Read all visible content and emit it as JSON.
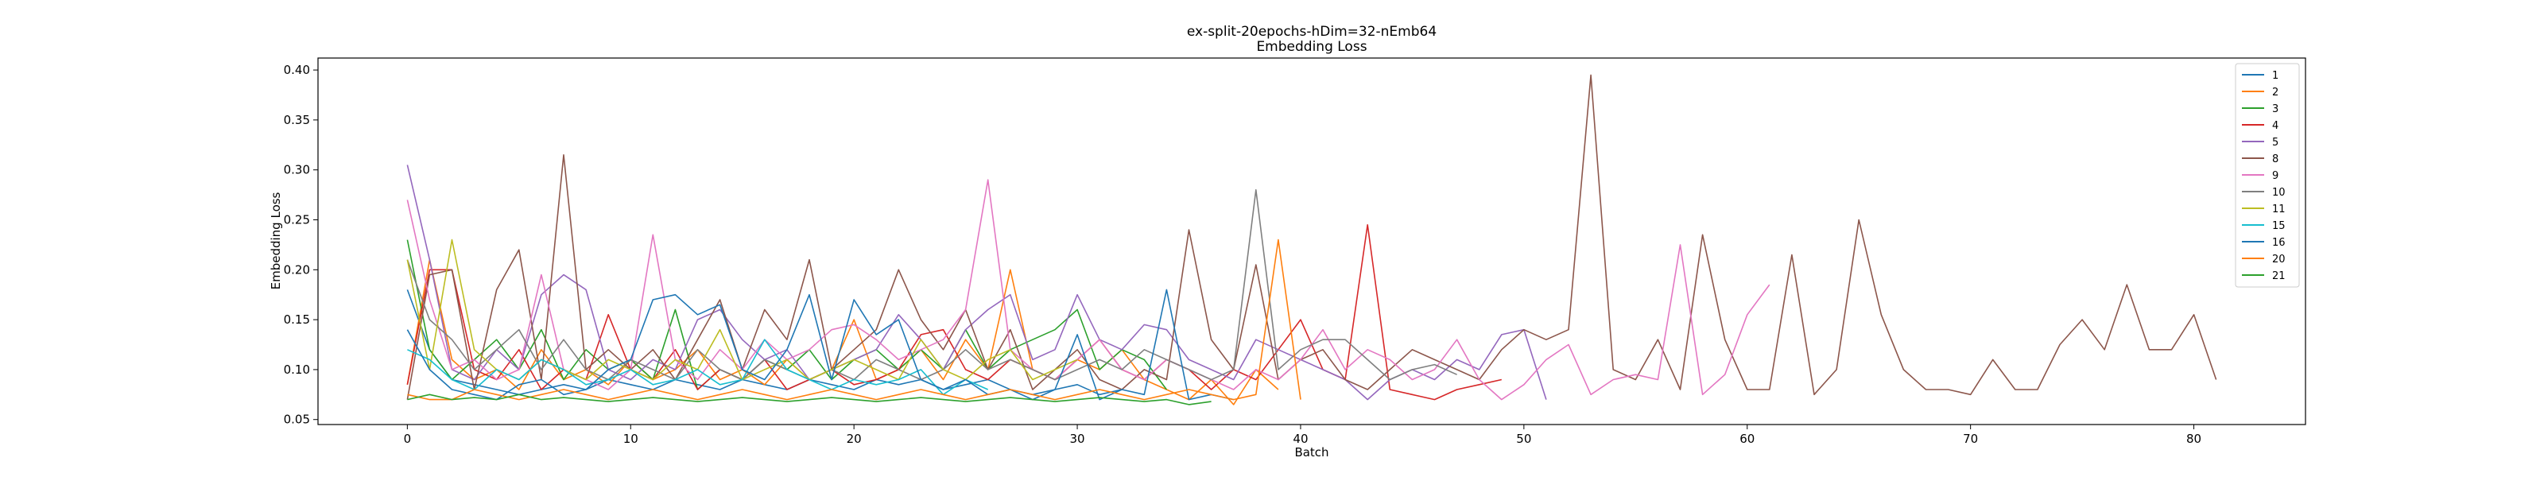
{
  "chart_data": {
    "type": "line",
    "title": "ex-split-20epochs-hDim=32-nEmb64",
    "subtitle": "Embedding Loss",
    "xlabel": "Batch",
    "ylabel": "Embedding Loss",
    "xlim": [
      -4,
      85
    ],
    "ylim": [
      0.045,
      0.412
    ],
    "xticks": [
      0,
      10,
      20,
      30,
      40,
      50,
      60,
      70,
      80
    ],
    "yticks": [
      0.05,
      0.1,
      0.15,
      0.2,
      0.25,
      0.3,
      0.35,
      0.4
    ],
    "ytick_labels": [
      "0.05",
      "0.10",
      "0.15",
      "0.20",
      "0.25",
      "0.30",
      "0.35",
      "0.40"
    ],
    "grid": false,
    "legend": "top-right",
    "series": [
      {
        "name": "1",
        "color": "#1f77b4",
        "values": [
          0.18,
          0.12,
          0.09,
          0.085,
          0.08,
          0.075,
          0.08,
          0.085,
          0.08,
          0.09,
          0.085,
          0.08,
          0.09,
          0.085,
          0.08,
          0.09,
          0.085,
          0.08,
          0.09,
          0.085,
          0.08,
          0.09,
          0.085,
          0.09,
          0.08,
          0.085,
          0.09,
          0.08,
          0.075,
          0.08,
          0.085,
          0.075,
          0.08
        ]
      },
      {
        "name": "2",
        "color": "#ff7f0e",
        "values": [
          0.085,
          0.21,
          0.11,
          0.09,
          0.1,
          0.08,
          0.12,
          0.09,
          0.1,
          0.085,
          0.11,
          0.09,
          0.1,
          0.12,
          0.09,
          0.1,
          0.085,
          0.11,
          0.09,
          0.1,
          0.15,
          0.09,
          0.1,
          0.12,
          0.09,
          0.13,
          0.1,
          0.2,
          0.1,
          0.09,
          0.11,
          0.1,
          0.12,
          0.09,
          0.08,
          0.07,
          0.09,
          0.065,
          0.1,
          0.08
        ]
      },
      {
        "name": "3",
        "color": "#2ca02c",
        "values": [
          0.23,
          0.12,
          0.09,
          0.11,
          0.13,
          0.1,
          0.14,
          0.09,
          0.12,
          0.1,
          0.11,
          0.09,
          0.16,
          0.08,
          0.1,
          0.09,
          0.11,
          0.1,
          0.12,
          0.09,
          0.11,
          0.12,
          0.1,
          0.12,
          0.1,
          0.14,
          0.1,
          0.12,
          0.13,
          0.14,
          0.16,
          0.1,
          0.12,
          0.11,
          0.08
        ]
      },
      {
        "name": "4",
        "color": "#d62728",
        "values": [
          0.085,
          0.2,
          0.2,
          0.1,
          0.09,
          0.12,
          0.08,
          0.1,
          0.09,
          0.155,
          0.1,
          0.09,
          0.12,
          0.08,
          0.1,
          0.09,
          0.11,
          0.08,
          0.09,
          0.1,
          0.085,
          0.09,
          0.1,
          0.135,
          0.14,
          0.1,
          0.09,
          0.11,
          0.1,
          0.09,
          0.11,
          0.13,
          0.1,
          0.09,
          0.11,
          0.1,
          0.08,
          0.1,
          0.09,
          0.12,
          0.15,
          0.1,
          0.09,
          0.245,
          0.08,
          0.075,
          0.07,
          0.08,
          0.085,
          0.09
        ]
      },
      {
        "name": "5",
        "color": "#9467bd",
        "values": [
          0.305,
          0.21,
          0.1,
          0.09,
          0.12,
          0.1,
          0.175,
          0.195,
          0.18,
          0.1,
          0.09,
          0.11,
          0.1,
          0.15,
          0.16,
          0.13,
          0.11,
          0.12,
          0.09,
          0.1,
          0.11,
          0.12,
          0.155,
          0.13,
          0.1,
          0.14,
          0.16,
          0.175,
          0.11,
          0.12,
          0.175,
          0.13,
          0.12,
          0.145,
          0.14,
          0.11,
          0.1,
          0.09,
          0.13,
          0.12,
          0.11,
          0.1,
          0.09,
          0.07,
          0.09,
          0.1,
          0.09,
          0.11,
          0.1,
          0.135,
          0.14,
          0.07
        ]
      },
      {
        "name": "8",
        "color": "#8c564b",
        "values": [
          0.07,
          0.195,
          0.2,
          0.08,
          0.18,
          0.22,
          0.09,
          0.315,
          0.1,
          0.12,
          0.1,
          0.12,
          0.09,
          0.13,
          0.17,
          0.1,
          0.16,
          0.13,
          0.21,
          0.1,
          0.12,
          0.14,
          0.2,
          0.15,
          0.12,
          0.16,
          0.1,
          0.14,
          0.08,
          0.1,
          0.12,
          0.09,
          0.08,
          0.1,
          0.09,
          0.24,
          0.13,
          0.1,
          0.205,
          0.09,
          0.11,
          0.12,
          0.09,
          0.08,
          0.1,
          0.12,
          0.11,
          0.1,
          0.09,
          0.12,
          0.14,
          0.13,
          0.14,
          0.395,
          0.1,
          0.09,
          0.13,
          0.08,
          0.235,
          0.13,
          0.08,
          0.08,
          0.215,
          0.075,
          0.1,
          0.25,
          0.155,
          0.1,
          0.08,
          0.08,
          0.075,
          0.11,
          0.08,
          0.08,
          0.125,
          0.15,
          0.12,
          0.185,
          0.12,
          0.12,
          0.155,
          0.09
        ]
      },
      {
        "name": "9",
        "color": "#e377c2",
        "values": [
          0.27,
          0.17,
          0.1,
          0.11,
          0.09,
          0.1,
          0.195,
          0.1,
          0.09,
          0.08,
          0.1,
          0.235,
          0.11,
          0.09,
          0.12,
          0.1,
          0.13,
          0.11,
          0.12,
          0.14,
          0.145,
          0.13,
          0.11,
          0.12,
          0.13,
          0.16,
          0.29,
          0.12,
          0.1,
          0.09,
          0.11,
          0.13,
          0.1,
          0.09,
          0.11,
          0.1,
          0.09,
          0.08,
          0.1,
          0.09,
          0.11,
          0.14,
          0.1,
          0.12,
          0.11,
          0.09,
          0.1,
          0.13,
          0.09,
          0.07,
          0.085,
          0.11,
          0.125,
          0.075,
          0.09,
          0.095,
          0.09,
          0.225,
          0.075,
          0.095,
          0.155,
          0.185
        ]
      },
      {
        "name": "10",
        "color": "#7f7f7f",
        "values": [
          0.21,
          0.15,
          0.13,
          0.1,
          0.12,
          0.14,
          0.1,
          0.13,
          0.1,
          0.09,
          0.11,
          0.1,
          0.09,
          0.12,
          0.1,
          0.09,
          0.11,
          0.1,
          0.09,
          0.1,
          0.09,
          0.11,
          0.1,
          0.09,
          0.1,
          0.12,
          0.1,
          0.11,
          0.1,
          0.09,
          0.1,
          0.11,
          0.1,
          0.12,
          0.11,
          0.1,
          0.09,
          0.1,
          0.28,
          0.1,
          0.12,
          0.13,
          0.13,
          0.11,
          0.09,
          0.1,
          0.105,
          0.095
        ]
      },
      {
        "name": "11",
        "color": "#bcbd22",
        "values": [
          0.21,
          0.1,
          0.23,
          0.12,
          0.1,
          0.09,
          0.11,
          0.1,
          0.09,
          0.11,
          0.1,
          0.09,
          0.11,
          0.1,
          0.14,
          0.09,
          0.1,
          0.11,
          0.09,
          0.1,
          0.11,
          0.1,
          0.09,
          0.13,
          0.1,
          0.09,
          0.11,
          0.12,
          0.09,
          0.1,
          0.11
        ]
      },
      {
        "name": "15",
        "color": "#17becf",
        "values": [
          0.12,
          0.11,
          0.09,
          0.08,
          0.1,
          0.09,
          0.11,
          0.1,
          0.085,
          0.09,
          0.1,
          0.085,
          0.09,
          0.1,
          0.085,
          0.09,
          0.13,
          0.1,
          0.09,
          0.08,
          0.09,
          0.085,
          0.09,
          0.1,
          0.075,
          0.09,
          0.08
        ]
      },
      {
        "name": "16",
        "color": "#1f77b4",
        "values": [
          0.14,
          0.1,
          0.08,
          0.075,
          0.07,
          0.085,
          0.09,
          0.075,
          0.08,
          0.1,
          0.11,
          0.17,
          0.175,
          0.155,
          0.165,
          0.1,
          0.09,
          0.12,
          0.175,
          0.09,
          0.17,
          0.135,
          0.15,
          0.09,
          0.08,
          0.09,
          0.075,
          0.08,
          0.07,
          0.08,
          0.135,
          0.07,
          0.08,
          0.075,
          0.18,
          0.07,
          0.075,
          0.07
        ]
      },
      {
        "name": "20",
        "color": "#ff7f0e",
        "values": [
          0.075,
          0.07,
          0.07,
          0.08,
          0.075,
          0.07,
          0.075,
          0.08,
          0.075,
          0.07,
          0.075,
          0.08,
          0.075,
          0.07,
          0.075,
          0.08,
          0.075,
          0.07,
          0.075,
          0.08,
          0.075,
          0.07,
          0.075,
          0.08,
          0.075,
          0.07,
          0.075,
          0.08,
          0.075,
          0.07,
          0.075,
          0.08,
          0.075,
          0.07,
          0.075,
          0.08,
          0.075,
          0.07,
          0.075,
          0.23,
          0.07
        ]
      },
      {
        "name": "21",
        "color": "#2ca02c",
        "values": [
          0.07,
          0.075,
          0.07,
          0.072,
          0.07,
          0.075,
          0.07,
          0.072,
          0.07,
          0.068,
          0.07,
          0.072,
          0.07,
          0.068,
          0.07,
          0.072,
          0.07,
          0.068,
          0.07,
          0.072,
          0.07,
          0.068,
          0.07,
          0.072,
          0.07,
          0.068,
          0.07,
          0.072,
          0.07,
          0.068,
          0.07,
          0.072,
          0.07,
          0.068,
          0.07,
          0.065,
          0.068
        ]
      }
    ]
  }
}
